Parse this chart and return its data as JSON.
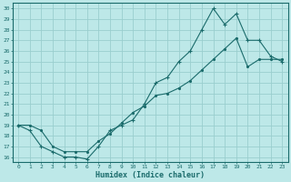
{
  "xlabel": "Humidex (Indice chaleur)",
  "bg_color": "#bde8e8",
  "grid_color": "#9acece",
  "line_color": "#1a6b6b",
  "xlim": [
    -0.5,
    23.5
  ],
  "ylim": [
    15.5,
    30.5
  ],
  "xticks": [
    0,
    1,
    2,
    3,
    4,
    5,
    6,
    7,
    8,
    9,
    10,
    11,
    12,
    13,
    14,
    15,
    16,
    17,
    18,
    19,
    20,
    21,
    22,
    23
  ],
  "yticks": [
    16,
    17,
    18,
    19,
    20,
    21,
    22,
    23,
    24,
    25,
    26,
    27,
    28,
    29,
    30
  ],
  "upper_x": [
    0,
    1,
    2,
    3,
    4,
    5,
    6,
    7,
    8,
    9,
    10,
    11,
    12,
    13,
    14,
    15,
    16,
    17,
    18,
    19,
    20,
    21,
    22,
    23
  ],
  "upper_y": [
    19,
    18.5,
    17,
    16.5,
    16,
    16,
    15.8,
    17,
    18.5,
    19,
    19.5,
    21,
    23,
    23.5,
    25,
    26,
    28,
    30,
    28.5,
    29.5,
    27,
    27,
    25.5,
    25
  ],
  "lower_x": [
    0,
    1,
    2,
    3,
    4,
    5,
    6,
    7,
    8,
    9,
    10,
    11,
    12,
    13,
    14,
    15,
    16,
    17,
    18,
    19,
    20,
    21,
    22,
    23
  ],
  "lower_y": [
    19,
    19,
    18.5,
    17,
    16.5,
    16.5,
    16.5,
    17.5,
    18.2,
    19.2,
    20.2,
    20.8,
    21.8,
    22.0,
    22.5,
    23.2,
    24.2,
    25.2,
    26.2,
    27.2,
    24.5,
    25.2,
    25.2,
    25.2
  ]
}
